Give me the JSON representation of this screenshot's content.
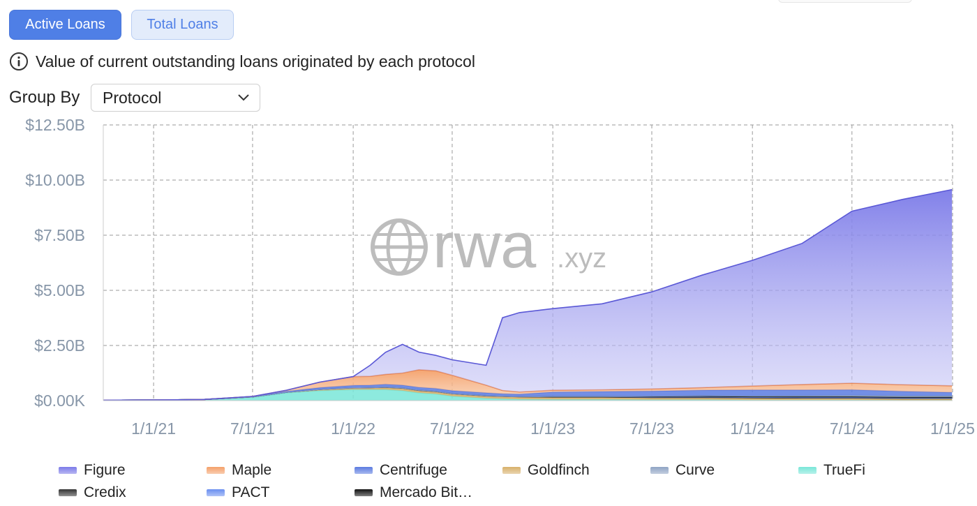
{
  "toggles": {
    "active_label": "Active Loans",
    "total_label": "Total Loans"
  },
  "description": "Value of current outstanding loans originated by each protocol",
  "group_by": {
    "label": "Group By",
    "value": "Protocol"
  },
  "watermark": {
    "main": "rwa",
    "suffix": ".xyz"
  },
  "colors": {
    "figure": "#7b7ae8",
    "maple": "#f4a06a",
    "centrifuge": "#5b7be0",
    "goldfinch": "#d7b06a",
    "curve": "#8ea3c4",
    "truefi": "#79e6d8",
    "credix": "#333333",
    "pact": "#6a8ef0",
    "mercado": "#111111"
  },
  "chart_data": {
    "type": "area",
    "stacked": true,
    "yticks": [
      "$0.00K",
      "$2.50B",
      "$5.00B",
      "$7.50B",
      "$10.00B",
      "$12.50B"
    ],
    "xticks": [
      "1/1/21",
      "7/1/21",
      "1/1/22",
      "7/1/22",
      "1/1/23",
      "7/1/23",
      "1/1/24",
      "7/1/24",
      "1/1/25"
    ],
    "ylim": [
      0,
      12.5
    ],
    "y_unit": "billion USD",
    "grid": true,
    "legend_position": "bottom",
    "x_dates": [
      "2020-10-01",
      "2021-01-01",
      "2021-04-01",
      "2021-07-01",
      "2021-09-01",
      "2021-11-01",
      "2022-01-01",
      "2022-02-01",
      "2022-03-01",
      "2022-04-01",
      "2022-05-01",
      "2022-06-01",
      "2022-07-01",
      "2022-09-01",
      "2022-10-01",
      "2022-11-01",
      "2023-01-01",
      "2023-04-01",
      "2023-07-01",
      "2023-10-01",
      "2024-01-01",
      "2024-04-01",
      "2024-07-01",
      "2024-10-01",
      "2024-12-31"
    ],
    "series": [
      {
        "name": "Figure",
        "values": [
          0,
          0,
          0,
          0,
          0,
          0,
          0,
          0.5,
          1.0,
          1.3,
          0.8,
          0.7,
          0.7,
          0.9,
          3.3,
          3.6,
          3.7,
          3.9,
          4.4,
          5.1,
          5.7,
          6.4,
          7.8,
          8.4,
          8.9
        ]
      },
      {
        "name": "Maple",
        "values": [
          0,
          0,
          0,
          0,
          0.05,
          0.25,
          0.4,
          0.4,
          0.45,
          0.55,
          0.8,
          0.8,
          0.7,
          0.35,
          0.15,
          0.1,
          0.08,
          0.08,
          0.1,
          0.12,
          0.18,
          0.25,
          0.3,
          0.3,
          0.3
        ]
      },
      {
        "name": "Centrifuge",
        "values": [
          0,
          0,
          0,
          0.02,
          0.04,
          0.08,
          0.1,
          0.1,
          0.12,
          0.12,
          0.12,
          0.12,
          0.12,
          0.12,
          0.1,
          0.1,
          0.18,
          0.2,
          0.22,
          0.24,
          0.26,
          0.25,
          0.25,
          0.2,
          0.15
        ]
      },
      {
        "name": "Goldfinch",
        "values": [
          0,
          0,
          0,
          0.02,
          0.03,
          0.05,
          0.06,
          0.07,
          0.08,
          0.09,
          0.09,
          0.09,
          0.09,
          0.09,
          0.09,
          0.09,
          0.09,
          0.09,
          0.08,
          0.08,
          0.08,
          0.07,
          0.07,
          0.06,
          0.06
        ]
      },
      {
        "name": "Curve",
        "values": [
          0,
          0,
          0,
          0,
          0,
          0,
          0,
          0,
          0,
          0,
          0,
          0,
          0,
          0,
          0,
          0,
          0,
          0,
          0.02,
          0.03,
          0.04,
          0.05,
          0.06,
          0.06,
          0.06
        ]
      },
      {
        "name": "TrueFi",
        "values": [
          0.02,
          0.03,
          0.05,
          0.15,
          0.35,
          0.45,
          0.5,
          0.5,
          0.5,
          0.45,
          0.35,
          0.3,
          0.2,
          0.1,
          0.08,
          0.06,
          0.05,
          0.05,
          0.04,
          0.04,
          0.03,
          0.03,
          0.03,
          0.02,
          0.02
        ]
      },
      {
        "name": "Credix",
        "values": [
          0,
          0,
          0,
          0,
          0,
          0.01,
          0.02,
          0.02,
          0.03,
          0.03,
          0.03,
          0.03,
          0.03,
          0.03,
          0.03,
          0.03,
          0.03,
          0.03,
          0.03,
          0.03,
          0.02,
          0.02,
          0.02,
          0.02,
          0.02
        ]
      },
      {
        "name": "PACT",
        "values": [
          0,
          0,
          0,
          0,
          0,
          0,
          0,
          0,
          0,
          0,
          0,
          0,
          0,
          0,
          0,
          0,
          0.02,
          0.02,
          0.02,
          0.03,
          0.03,
          0.03,
          0.03,
          0.03,
          0.03
        ]
      },
      {
        "name": "Mercado Bit…",
        "values": [
          0,
          0,
          0,
          0,
          0,
          0,
          0.01,
          0.01,
          0.01,
          0.01,
          0.01,
          0.01,
          0.01,
          0.01,
          0.01,
          0.01,
          0.02,
          0.02,
          0.02,
          0.02,
          0.02,
          0.03,
          0.03,
          0.03,
          0.03
        ]
      }
    ]
  }
}
